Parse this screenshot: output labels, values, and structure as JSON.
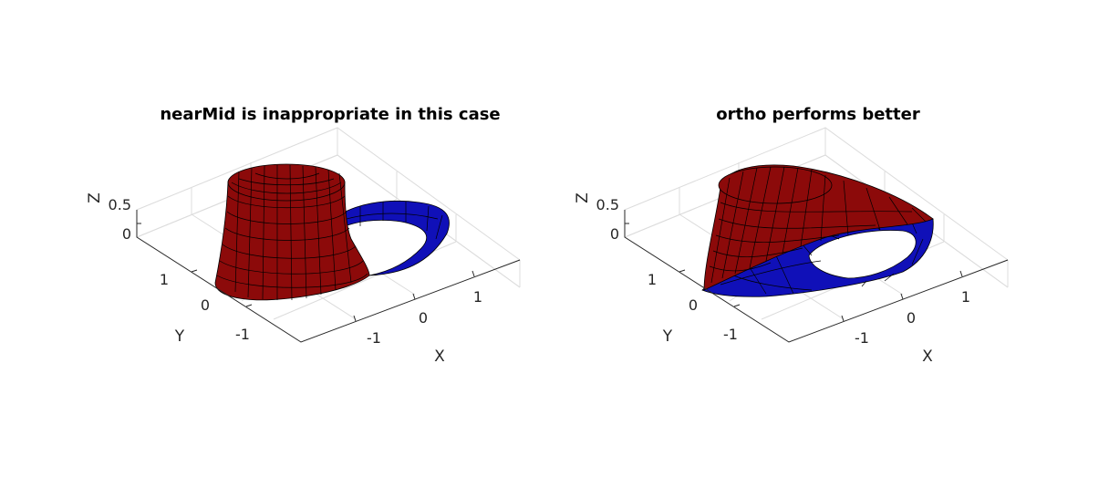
{
  "chart_data": [
    {
      "type": "surface",
      "title": "nearMid is inappropriate in this case",
      "xlabel": "X",
      "ylabel": "Y",
      "zlabel": "Z",
      "xticks": [
        "-1",
        "0",
        "1"
      ],
      "yticks": [
        "-1",
        "0",
        "1"
      ],
      "zticks": [
        "0",
        "0.5"
      ],
      "series": [
        {
          "color": "#8c0a0a"
        },
        {
          "color": "#1010b8"
        }
      ]
    },
    {
      "type": "surface",
      "title": "ortho performs better",
      "xlabel": "X",
      "ylabel": "Y",
      "zlabel": "Z",
      "xticks": [
        "-1",
        "0",
        "1"
      ],
      "yticks": [
        "-1",
        "0",
        "1"
      ],
      "zticks": [
        "0",
        "0.5"
      ],
      "series": [
        {
          "color": "#8c0a0a"
        },
        {
          "color": "#1010b8"
        }
      ]
    }
  ]
}
